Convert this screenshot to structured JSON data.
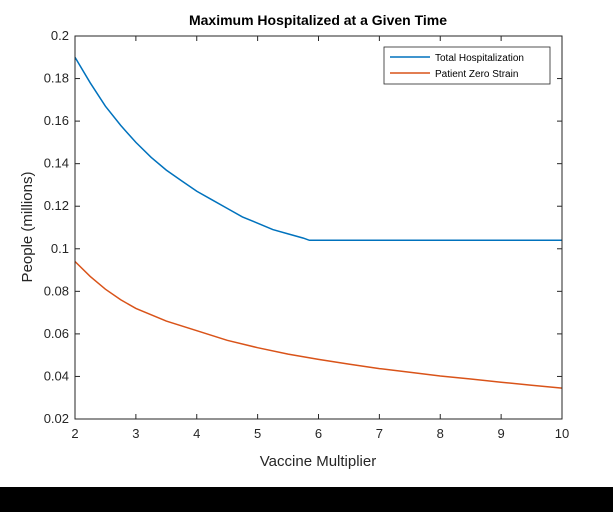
{
  "background": "#000000",
  "chart_data": {
    "type": "line",
    "title": "Maximum Hospitalized at a Given Time",
    "xlabel": "Vaccine Multiplier",
    "ylabel": "People (millions)",
    "xlim": [
      2,
      10
    ],
    "ylim": [
      0.02,
      0.2
    ],
    "xticks": [
      "2",
      "3",
      "4",
      "5",
      "6",
      "7",
      "8",
      "9",
      "10"
    ],
    "yticks": [
      "0.02",
      "0.04",
      "0.06",
      "0.08",
      "0.1",
      "0.12",
      "0.14",
      "0.16",
      "0.18",
      "0.2"
    ],
    "grid": false,
    "legend_position": "top-right",
    "series": [
      {
        "name": "Total Hospitalization",
        "color": "#0072BD",
        "x": [
          2.0,
          2.25,
          2.5,
          2.75,
          3.0,
          3.25,
          3.5,
          3.75,
          4.0,
          4.25,
          4.5,
          4.75,
          5.0,
          5.25,
          5.5,
          5.75,
          5.85,
          6.0,
          6.5,
          7.0,
          7.5,
          8.0,
          8.5,
          9.0,
          9.5,
          10.0
        ],
        "y": [
          0.19,
          0.178,
          0.167,
          0.158,
          0.15,
          0.143,
          0.137,
          0.132,
          0.127,
          0.123,
          0.119,
          0.115,
          0.112,
          0.109,
          0.107,
          0.105,
          0.104,
          0.104,
          0.104,
          0.104,
          0.104,
          0.104,
          0.104,
          0.104,
          0.104,
          0.104
        ]
      },
      {
        "name": "Patient Zero Strain",
        "color": "#D95319",
        "x": [
          2.0,
          2.25,
          2.5,
          2.75,
          3.0,
          3.5,
          4.0,
          4.5,
          5.0,
          5.5,
          6.0,
          6.5,
          7.0,
          7.5,
          8.0,
          8.5,
          9.0,
          9.5,
          10.0
        ],
        "y": [
          0.094,
          0.087,
          0.081,
          0.076,
          0.072,
          0.066,
          0.0615,
          0.057,
          0.0535,
          0.0505,
          0.048,
          0.0458,
          0.0437,
          0.042,
          0.0402,
          0.0388,
          0.0373,
          0.0359,
          0.0345
        ]
      }
    ]
  }
}
